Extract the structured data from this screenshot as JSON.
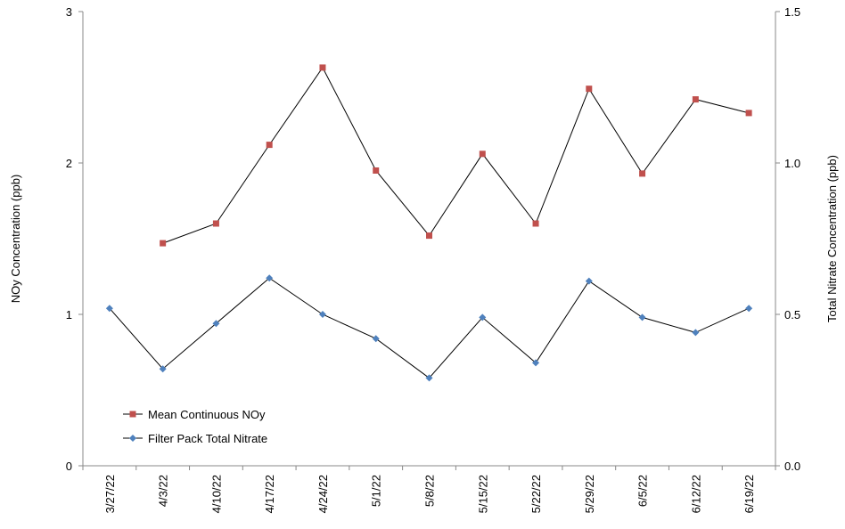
{
  "chart_data": {
    "type": "line",
    "ylabel": "NOy Concentration (ppb)",
    "y2label": "Total Nitrate Concentration (ppb)",
    "categories": [
      "3/27/22",
      "4/3/22",
      "4/10/22",
      "4/17/22",
      "4/24/22",
      "5/1/22",
      "5/8/22",
      "5/15/22",
      "5/22/22",
      "5/29/22",
      "6/5/22",
      "6/12/22",
      "6/19/22"
    ],
    "series": [
      {
        "name": "Mean Continuous NOy",
        "color": "#c0504d",
        "marker": "square",
        "values": [
          null,
          1.47,
          1.6,
          2.12,
          2.63,
          1.95,
          1.52,
          2.06,
          1.6,
          2.49,
          1.93,
          2.42,
          2.33
        ]
      },
      {
        "name": "Filter Pack Total Nitrate",
        "color": "#4f81bd",
        "marker": "diamond",
        "axis": "y2",
        "values": [
          0.52,
          0.32,
          0.47,
          0.62,
          0.5,
          0.42,
          0.29,
          0.49,
          0.34,
          0.61,
          0.49,
          0.44,
          0.52
        ]
      }
    ],
    "ylim": [
      0,
      3
    ],
    "yticks": [
      0,
      1,
      2,
      3
    ],
    "y2lim": [
      0,
      1.5
    ],
    "y2ticks": [
      {
        "value": 0,
        "label": "0.0"
      },
      {
        "value": 0.5,
        "label": "0.5"
      },
      {
        "value": 1,
        "label": "1.0"
      },
      {
        "value": 1.5,
        "label": "1.5"
      }
    ],
    "legend": "lower left"
  }
}
